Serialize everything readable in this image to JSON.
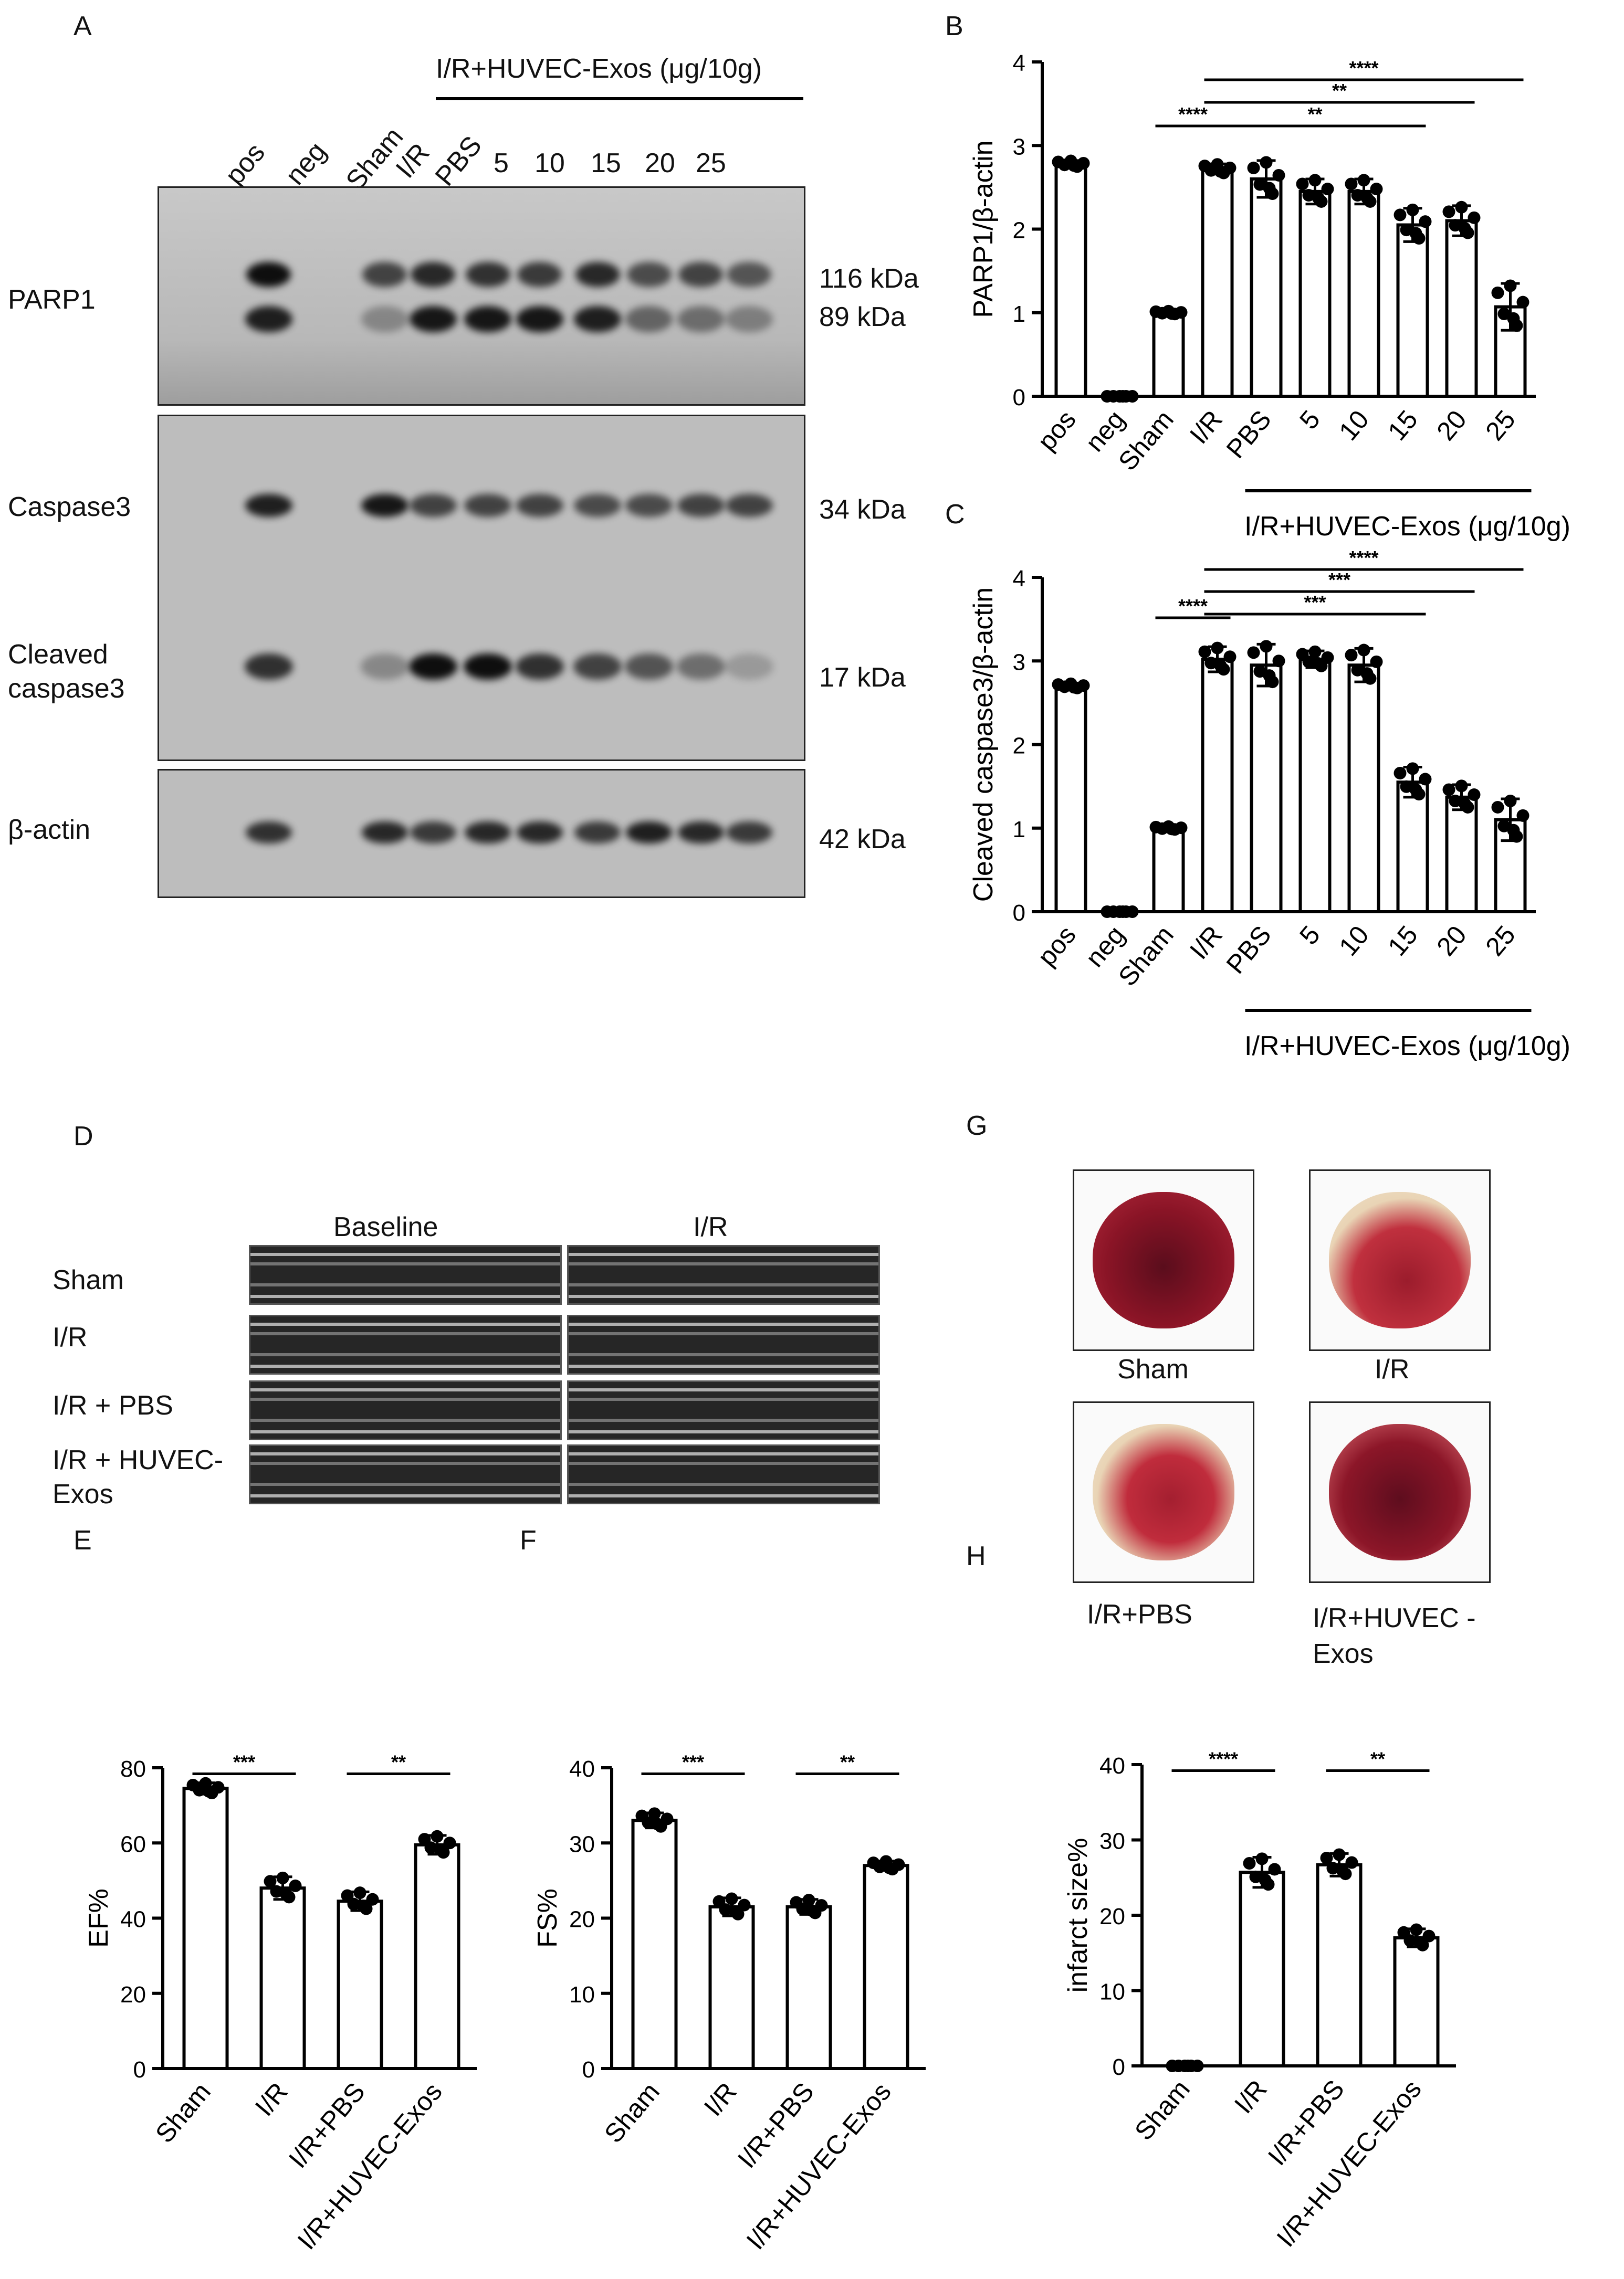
{
  "panel_letters": [
    "A",
    "B",
    "C",
    "D",
    "E",
    "F",
    "G",
    "H"
  ],
  "panel_a": {
    "group_header": "I/R+HUVEC-Exos (μg/10g)",
    "lanes": [
      "pos",
      "neg",
      "Sham",
      "I/R",
      "PBS",
      "5",
      "10",
      "15",
      "20",
      "25"
    ],
    "rows": [
      {
        "label": "PARP1",
        "bands": [
          "116 kDa",
          "89 kDa"
        ]
      },
      {
        "label": "Caspase3",
        "bands": [
          "34 kDa"
        ]
      },
      {
        "label": "Cleaved caspase3",
        "bands": [
          "17 kDa"
        ]
      },
      {
        "label": "β-actin",
        "bands": [
          "42 kDa"
        ]
      }
    ]
  },
  "panel_d": {
    "columns": [
      "Baseline",
      "I/R"
    ],
    "rows": [
      "Sham",
      "I/R",
      "I/R + PBS",
      "I/R + HUVEC-Exos"
    ]
  },
  "panel_g": {
    "captions": [
      "Sham",
      "I/R",
      "I/R+PBS",
      "I/R+HUVEC -Exos"
    ]
  },
  "colors": {
    "heart_tissue": "#9b1c2c",
    "heart_pale": "#e9d4b5",
    "bar_fill": "#ffffff",
    "ink": "#000000"
  },
  "chart_data": [
    {
      "panel": "B",
      "type": "bar",
      "ylabel": "PARP1/β-actin",
      "ylim": [
        0,
        4
      ],
      "yticks": [
        0,
        1,
        2,
        3,
        4
      ],
      "categories": [
        "pos",
        "neg",
        "Sham",
        "I/R",
        "PBS",
        "5",
        "10",
        "15",
        "20",
        "25"
      ],
      "values": [
        2.78,
        0.0,
        1.0,
        2.72,
        2.6,
        2.45,
        2.45,
        2.05,
        2.1,
        1.07
      ],
      "errors": [
        0.04,
        0.0,
        0.02,
        0.06,
        0.22,
        0.15,
        0.15,
        0.2,
        0.18,
        0.28
      ],
      "group_label": "I/R+HUVEC-Exos (μg/10g)",
      "significance": [
        {
          "from": "Sham",
          "to": "I/R",
          "label": "****"
        },
        {
          "from": "I/R",
          "to": "15",
          "label": "**"
        },
        {
          "from": "I/R",
          "to": "25",
          "label": "**"
        },
        {
          "from": "I/R",
          "to": "25",
          "label": "****"
        }
      ]
    },
    {
      "panel": "C",
      "type": "bar",
      "ylabel": "Cleaved caspase3/β-actin",
      "ylim": [
        0,
        4
      ],
      "yticks": [
        0,
        1,
        2,
        3,
        4
      ],
      "categories": [
        "pos",
        "neg",
        "Sham",
        "I/R",
        "PBS",
        "5",
        "10",
        "15",
        "20",
        "25"
      ],
      "values": [
        2.7,
        0.0,
        1.0,
        3.02,
        2.95,
        3.02,
        2.95,
        1.55,
        1.37,
        1.1
      ],
      "errors": [
        0.03,
        0.0,
        0.02,
        0.15,
        0.25,
        0.1,
        0.2,
        0.18,
        0.15,
        0.25
      ],
      "group_label": "I/R+HUVEC-Exos (μg/10g)",
      "significance": [
        {
          "from": "Sham",
          "to": "I/R",
          "label": "****"
        },
        {
          "from": "I/R",
          "to": "15",
          "label": "***"
        },
        {
          "from": "I/R",
          "to": "25",
          "label": "***"
        },
        {
          "from": "I/R",
          "to": "25",
          "label": "****"
        }
      ]
    },
    {
      "panel": "E",
      "type": "bar",
      "ylabel": "EF%",
      "ylim": [
        0,
        80
      ],
      "yticks": [
        0,
        20,
        40,
        60,
        80
      ],
      "categories": [
        "Sham",
        "I/R",
        "I/R+PBS",
        "I/R+HUVEC-Exos"
      ],
      "values": [
        74.5,
        48,
        44.5,
        59.5
      ],
      "errors": [
        1.5,
        3,
        2.5,
        2.5
      ],
      "significance": [
        {
          "from": "Sham",
          "to": "I/R",
          "label": "***"
        },
        {
          "from": "I/R+PBS",
          "to": "I/R+HUVEC-Exos",
          "label": "**"
        }
      ]
    },
    {
      "panel": "F",
      "type": "bar",
      "ylabel": "FS%",
      "ylim": [
        0,
        40
      ],
      "yticks": [
        0,
        10,
        20,
        30,
        40
      ],
      "categories": [
        "Sham",
        "I/R",
        "I/R+PBS",
        "I/R+HUVEC-Exos"
      ],
      "values": [
        33,
        21.5,
        21.5,
        27
      ],
      "errors": [
        1,
        1.2,
        1,
        0.6
      ],
      "significance": [
        {
          "from": "Sham",
          "to": "I/R",
          "label": "***"
        },
        {
          "from": "I/R+PBS",
          "to": "I/R+HUVEC-Exos",
          "label": "**"
        }
      ]
    },
    {
      "panel": "H",
      "type": "bar",
      "ylabel": "infarct size%",
      "ylim": [
        0,
        40
      ],
      "yticks": [
        0,
        10,
        20,
        30,
        40
      ],
      "categories": [
        "Sham",
        "I/R",
        "I/R+PBS",
        "I/R+HUVEC-Exos"
      ],
      "values": [
        0,
        25.7,
        26.7,
        17
      ],
      "errors": [
        0,
        2,
        1.5,
        1.2
      ],
      "significance": [
        {
          "from": "Sham",
          "to": "I/R",
          "label": "****"
        },
        {
          "from": "I/R+PBS",
          "to": "I/R+HUVEC-Exos",
          "label": "**"
        }
      ]
    }
  ]
}
